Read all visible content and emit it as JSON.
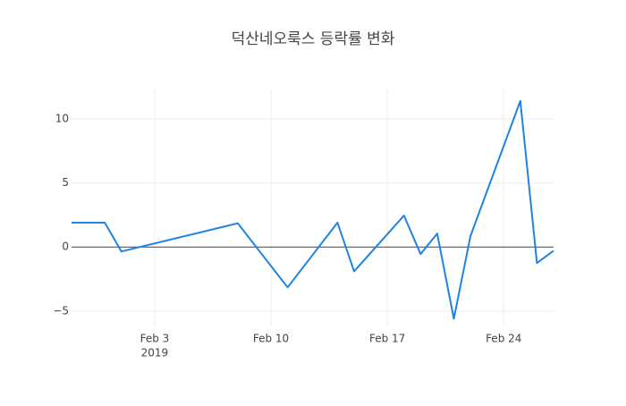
{
  "chart_data": {
    "type": "line",
    "title": "덕산네오룩스 등락률 변화",
    "x": [
      "2019-01-29",
      "2019-01-31",
      "2019-02-01",
      "2019-02-08",
      "2019-02-11",
      "2019-02-14",
      "2019-02-15",
      "2019-02-18",
      "2019-02-19",
      "2019-02-20",
      "2019-02-21",
      "2019-02-22",
      "2019-02-25",
      "2019-02-26",
      "2019-02-27"
    ],
    "series": [
      {
        "color": "#1f83e0",
        "values": [
          1.9,
          1.9,
          -0.35,
          1.85,
          -3.15,
          1.9,
          -1.9,
          2.45,
          -0.55,
          1.05,
          -5.6,
          0.85,
          11.4,
          -1.25,
          -0.3
        ]
      }
    ],
    "xlim": [
      "2019-01-29",
      "2019-02-27"
    ],
    "xticks": [
      {
        "value": "2019-02-03",
        "label": "Feb 3"
      },
      {
        "value": "2019-02-10",
        "label": "Feb 10"
      },
      {
        "value": "2019-02-17",
        "label": "Feb 17"
      },
      {
        "value": "2019-02-24",
        "label": "Feb 24"
      }
    ],
    "x_year_label": "2019",
    "ylim": [
      -6.2,
      12.3
    ],
    "yticks": [
      {
        "value": -5,
        "label": "−5"
      },
      0,
      5,
      10
    ],
    "grid": true
  }
}
